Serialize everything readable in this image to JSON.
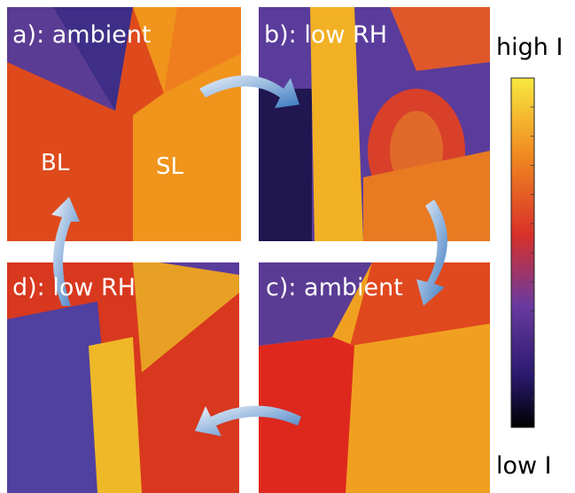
{
  "panels": [
    {
      "label": "a): ambient",
      "regions": [
        "BL",
        "SL"
      ]
    },
    {
      "label": "b): low RH"
    },
    {
      "label": "c): ambient"
    },
    {
      "label": "d): low RH"
    }
  ],
  "colorbar": {
    "top_label": "high I",
    "bottom_label": "low I"
  }
}
